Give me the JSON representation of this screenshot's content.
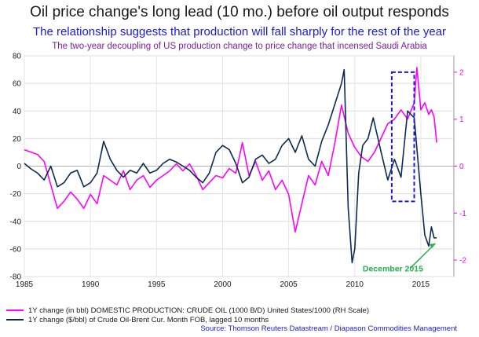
{
  "titles": {
    "main": "Oil price change's long lead (10 mo.) before oil output responds",
    "subtitle": "The relationship suggests that production will fall sharply for the rest of the year",
    "subtitle2": "The two-year decoupling of US production change to price change that incensed Saudi Arabia"
  },
  "annotation": {
    "label": "December 2015"
  },
  "source": "Source: Thomson Reuters Datastream / Diapason Commodities Management",
  "colors": {
    "production": "#ff00ff",
    "price": "#0d2b52",
    "box": "#1a1ad6",
    "arrow": "#22b14c"
  },
  "chart_data": {
    "type": "line",
    "x_ticks": [
      "1985",
      "1990",
      "1995",
      "2000",
      "2005",
      "2010",
      "2015"
    ],
    "y_left": {
      "ticks": [
        "80",
        "60",
        "40",
        "20",
        "0",
        "-20",
        "-40",
        "-60",
        "-80"
      ],
      "range": [
        -80,
        80
      ]
    },
    "y_right": {
      "ticks": [
        "2",
        "1",
        "0",
        "-1",
        "-2"
      ],
      "range": [
        -2.35,
        2.35
      ]
    },
    "series": [
      {
        "name": "1Y change (in bbl) DOMESTIC PRODUCTION: CRUDE OIL (1000 B/D) United States/1000 (RH Scale)",
        "axis": "right",
        "points": [
          [
            1985,
            0.35
          ],
          [
            1986,
            0.25
          ],
          [
            1986.5,
            0.1
          ],
          [
            1987,
            -0.4
          ],
          [
            1987.5,
            -0.9
          ],
          [
            1988,
            -0.75
          ],
          [
            1988.5,
            -0.55
          ],
          [
            1989,
            -0.7
          ],
          [
            1989.5,
            -0.9
          ],
          [
            1990,
            -0.6
          ],
          [
            1990.5,
            -0.8
          ],
          [
            1991,
            -0.2
          ],
          [
            1991.5,
            -0.3
          ],
          [
            1992,
            -0.4
          ],
          [
            1992.5,
            -0.1
          ],
          [
            1993,
            -0.5
          ],
          [
            1993.5,
            -0.3
          ],
          [
            1994,
            -0.2
          ],
          [
            1994.5,
            -0.45
          ],
          [
            1995,
            -0.3
          ],
          [
            1995.5,
            -0.2
          ],
          [
            1996,
            -0.1
          ],
          [
            1996.5,
            0.05
          ],
          [
            1997,
            -0.1
          ],
          [
            1997.5,
            0.05
          ],
          [
            1998,
            -0.2
          ],
          [
            1998.5,
            -0.5
          ],
          [
            1999,
            -0.35
          ],
          [
            1999.5,
            -0.2
          ],
          [
            2000,
            -0.25
          ],
          [
            2000.5,
            -0.05
          ],
          [
            2001,
            -0.15
          ],
          [
            2001.5,
            0.5
          ],
          [
            2002,
            -0.2
          ],
          [
            2002.5,
            0.1
          ],
          [
            2003,
            -0.3
          ],
          [
            2003.5,
            -0.1
          ],
          [
            2004,
            -0.5
          ],
          [
            2004.5,
            -0.3
          ],
          [
            2005,
            -0.6
          ],
          [
            2005.5,
            -1.4
          ],
          [
            2006,
            -0.8
          ],
          [
            2006.5,
            -0.2
          ],
          [
            2007,
            -0.4
          ],
          [
            2007.5,
            0.1
          ],
          [
            2008,
            -0.2
          ],
          [
            2008.5,
            0.5
          ],
          [
            2009,
            1.3
          ],
          [
            2009.5,
            0.7
          ],
          [
            2010,
            0.4
          ],
          [
            2010.5,
            0.2
          ],
          [
            2011,
            0.1
          ],
          [
            2011.5,
            0.3
          ],
          [
            2012,
            0.6
          ],
          [
            2012.5,
            0.9
          ],
          [
            2013,
            1.0
          ],
          [
            2013.5,
            1.2
          ],
          [
            2014,
            1.0
          ],
          [
            2014.5,
            1.35
          ],
          [
            2014.7,
            2.1
          ],
          [
            2015,
            1.2
          ],
          [
            2015.3,
            1.35
          ],
          [
            2015.6,
            1.1
          ],
          [
            2015.8,
            1.2
          ],
          [
            2016,
            1.05
          ],
          [
            2016.2,
            0.5
          ]
        ]
      },
      {
        "name": "1Y change ($/bbl) of Crude Oil-Brent Cur. Month FOB, lagged 10 months",
        "axis": "left",
        "points": [
          [
            1985,
            2
          ],
          [
            1985.5,
            -2
          ],
          [
            1986,
            -5
          ],
          [
            1986.5,
            -10
          ],
          [
            1987,
            0
          ],
          [
            1987.5,
            -15
          ],
          [
            1988,
            -12
          ],
          [
            1988.5,
            -5
          ],
          [
            1989,
            -3
          ],
          [
            1989.5,
            -15
          ],
          [
            1990,
            -12
          ],
          [
            1990.5,
            -5
          ],
          [
            1991,
            18
          ],
          [
            1991.5,
            5
          ],
          [
            1992,
            -3
          ],
          [
            1992.5,
            -8
          ],
          [
            1993,
            -3
          ],
          [
            1993.5,
            -5
          ],
          [
            1994,
            2
          ],
          [
            1994.5,
            -5
          ],
          [
            1995,
            -3
          ],
          [
            1995.5,
            2
          ],
          [
            1996,
            5
          ],
          [
            1996.5,
            3
          ],
          [
            1997,
            0
          ],
          [
            1997.5,
            -3
          ],
          [
            1998,
            -8
          ],
          [
            1998.5,
            -12
          ],
          [
            1999,
            -5
          ],
          [
            1999.5,
            10
          ],
          [
            2000,
            15
          ],
          [
            2000.5,
            12
          ],
          [
            2001,
            2
          ],
          [
            2001.5,
            -12
          ],
          [
            2002,
            -8
          ],
          [
            2002.5,
            5
          ],
          [
            2003,
            8
          ],
          [
            2003.5,
            2
          ],
          [
            2004,
            5
          ],
          [
            2004.5,
            15
          ],
          [
            2005,
            20
          ],
          [
            2005.5,
            10
          ],
          [
            2006,
            22
          ],
          [
            2006.5,
            5
          ],
          [
            2007,
            0
          ],
          [
            2007.5,
            18
          ],
          [
            2008,
            30
          ],
          [
            2008.5,
            45
          ],
          [
            2009,
            60
          ],
          [
            2009.2,
            70
          ],
          [
            2009.5,
            -30
          ],
          [
            2009.8,
            -70
          ],
          [
            2010,
            -60
          ],
          [
            2010.3,
            -5
          ],
          [
            2010.6,
            15
          ],
          [
            2011,
            20
          ],
          [
            2011.4,
            35
          ],
          [
            2012,
            10
          ],
          [
            2012.5,
            -10
          ],
          [
            2013,
            5
          ],
          [
            2013.5,
            -8
          ],
          [
            2014,
            40
          ],
          [
            2014.5,
            35
          ],
          [
            2015,
            -20
          ],
          [
            2015.3,
            -50
          ],
          [
            2015.6,
            -58
          ],
          [
            2015.8,
            -44
          ],
          [
            2016,
            -52
          ],
          [
            2016.2,
            -52
          ]
        ]
      }
    ]
  },
  "legend": {
    "production": "1Y change (in bbl) DOMESTIC PRODUCTION: CRUDE OIL (1000 B/D)  United States/1000 (RH Scale)",
    "price": "1Y change ($/bbl) of Crude Oil-Brent Cur. Month FOB, lagged 10 months"
  }
}
